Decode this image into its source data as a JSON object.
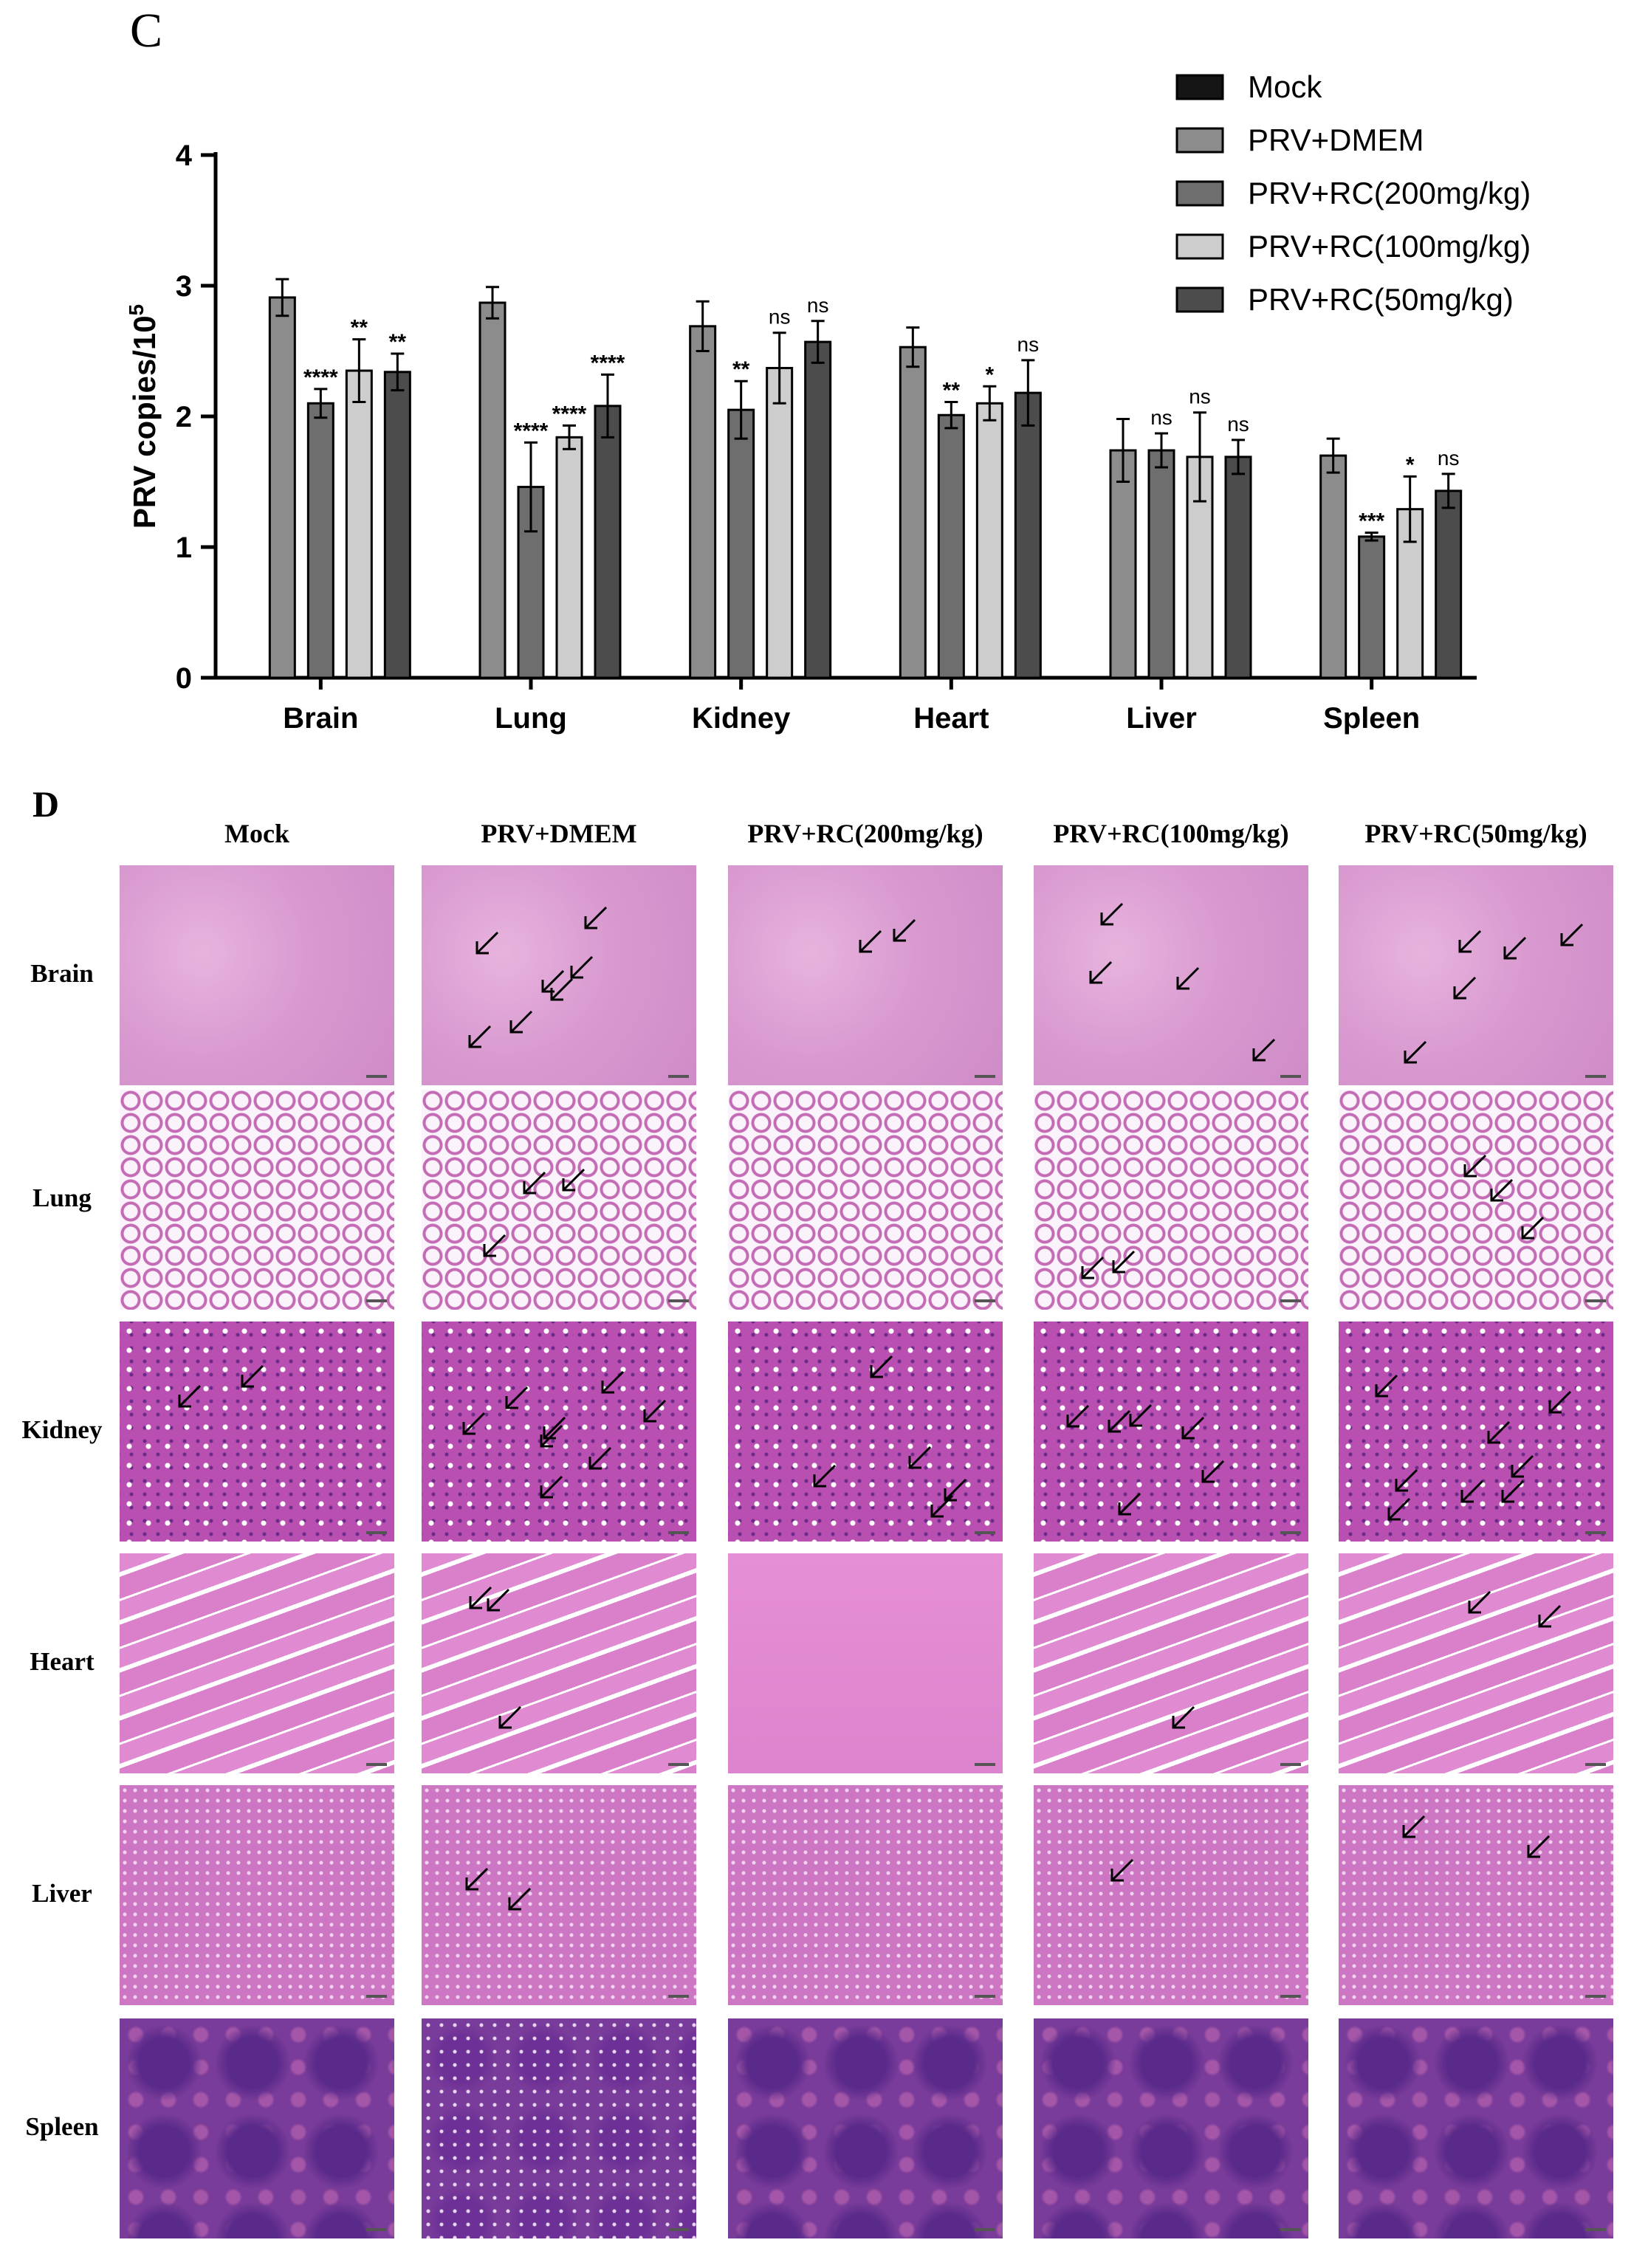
{
  "panel_c": {
    "letter": "C",
    "chart_data": {
      "type": "bar",
      "categories": [
        "Brain",
        "Lung",
        "Kidney",
        "Heart",
        "Liver",
        "Spleen"
      ],
      "ylabel_main": "PRV copies/10",
      "ylabel_sup": "5",
      "ylim": [
        0,
        4
      ],
      "yticks": [
        0,
        1,
        2,
        3,
        4
      ],
      "legend_position": "top-right",
      "series": [
        {
          "name": "Mock",
          "color": "#151515",
          "values": [
            0,
            0,
            0,
            0,
            0,
            0
          ],
          "errors": [
            0,
            0,
            0,
            0,
            0,
            0
          ],
          "sig": [
            "",
            "",
            "",
            "",
            "",
            ""
          ]
        },
        {
          "name": "PRV+DMEM",
          "color": "#8c8c8c",
          "values": [
            2.91,
            2.87,
            2.69,
            2.53,
            1.74,
            1.7
          ],
          "errors": [
            0.14,
            0.12,
            0.19,
            0.15,
            0.24,
            0.13
          ],
          "sig": [
            "",
            "",
            "",
            "",
            "",
            ""
          ]
        },
        {
          "name": "PRV+RC(200mg/kg)",
          "color": "#6e6e6e",
          "values": [
            2.1,
            1.46,
            2.05,
            2.01,
            1.74,
            1.08
          ],
          "errors": [
            0.11,
            0.34,
            0.22,
            0.1,
            0.13,
            0.03
          ],
          "sig": [
            "****",
            "****",
            "**",
            "**",
            "ns",
            "***"
          ]
        },
        {
          "name": "PRV+RC(100mg/kg)",
          "color": "#cdcdcd",
          "values": [
            2.35,
            1.84,
            2.37,
            2.1,
            1.69,
            1.29
          ],
          "errors": [
            0.24,
            0.09,
            0.27,
            0.13,
            0.34,
            0.25
          ],
          "sig": [
            "**",
            "****",
            "ns",
            "*",
            "ns",
            "*"
          ]
        },
        {
          "name": "PRV+RC(50mg/kg)",
          "color": "#4c4c4c",
          "values": [
            2.34,
            2.08,
            2.57,
            2.18,
            1.69,
            1.43
          ],
          "errors": [
            0.14,
            0.24,
            0.16,
            0.25,
            0.13,
            0.13
          ],
          "sig": [
            "**",
            "****",
            "ns",
            "ns",
            "ns",
            "ns"
          ]
        }
      ]
    }
  },
  "panel_d": {
    "letter": "D",
    "columns": [
      "Mock",
      "PRV+DMEM",
      "PRV+RC(200mg/kg)",
      "PRV+RC(100mg/kg)",
      "PRV+RC(50mg/kg)"
    ],
    "rows": [
      "Brain",
      "Lung",
      "Kidney",
      "Heart",
      "Liver",
      "Spleen"
    ],
    "arrow_counts": [
      [
        0,
        7,
        2,
        4,
        5
      ],
      [
        0,
        3,
        0,
        2,
        3
      ],
      [
        2,
        8,
        5,
        6,
        8
      ],
      [
        0,
        3,
        0,
        1,
        2
      ],
      [
        0,
        2,
        0,
        1,
        2
      ],
      [
        0,
        0,
        0,
        0,
        0
      ]
    ]
  }
}
